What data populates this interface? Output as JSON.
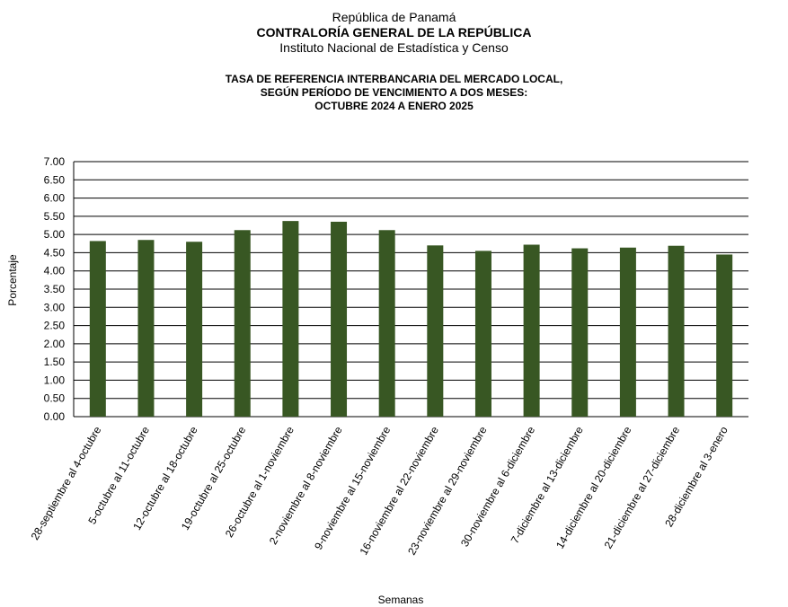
{
  "header": {
    "line1": "República de Panamá",
    "line2": "CONTRALORÍA GENERAL DE LA REPÚBLICA",
    "line3": "Instituto Nacional de Estadística y Censo"
  },
  "chart_data": {
    "type": "bar",
    "title": [
      "TASA DE REFERENCIA  INTERBANCARIA  DEL  MERCADO  LOCAL,",
      "SEGÚN  PERÍODO  DE  VENCIMIENTO  A DOS MESES:",
      "OCTUBRE  2024  A ENERO  2025"
    ],
    "xlabel": "Semanas",
    "ylabel": "Porcentaje",
    "ylim": [
      0,
      7
    ],
    "yticks": [
      "0.00",
      "0.50",
      "1.00",
      "1.50",
      "2.00",
      "2.50",
      "3.00",
      "3.50",
      "4.00",
      "4.50",
      "5.00",
      "5.50",
      "6.00",
      "6.50",
      "7.00"
    ],
    "grid": true,
    "bar_color": "#385723",
    "categories": [
      "28-septiembre al 4-octubre",
      "5-octubre al 11-octubre",
      "12-octubre al 18-octubre",
      "19-octubre al 25-octubre",
      "26-octubre al 1-noviembre",
      "2-noviembre al 8-noviembre",
      "9-noviembre al 15-noviembre",
      "16-noviembre al 22-noviembre",
      "23-noviembre al 29-noviembre",
      "30-noviembre al 6-diciembre",
      "7-diciembre al 13-diciembre",
      "14-diciembre al 20-diciembre",
      "21-diciembre al 27-diciembre",
      "28-diciembre al 3-enero"
    ],
    "values": [
      4.82,
      4.85,
      4.8,
      5.12,
      5.37,
      5.35,
      5.12,
      4.7,
      4.55,
      4.72,
      4.62,
      4.64,
      4.69,
      4.45
    ]
  }
}
